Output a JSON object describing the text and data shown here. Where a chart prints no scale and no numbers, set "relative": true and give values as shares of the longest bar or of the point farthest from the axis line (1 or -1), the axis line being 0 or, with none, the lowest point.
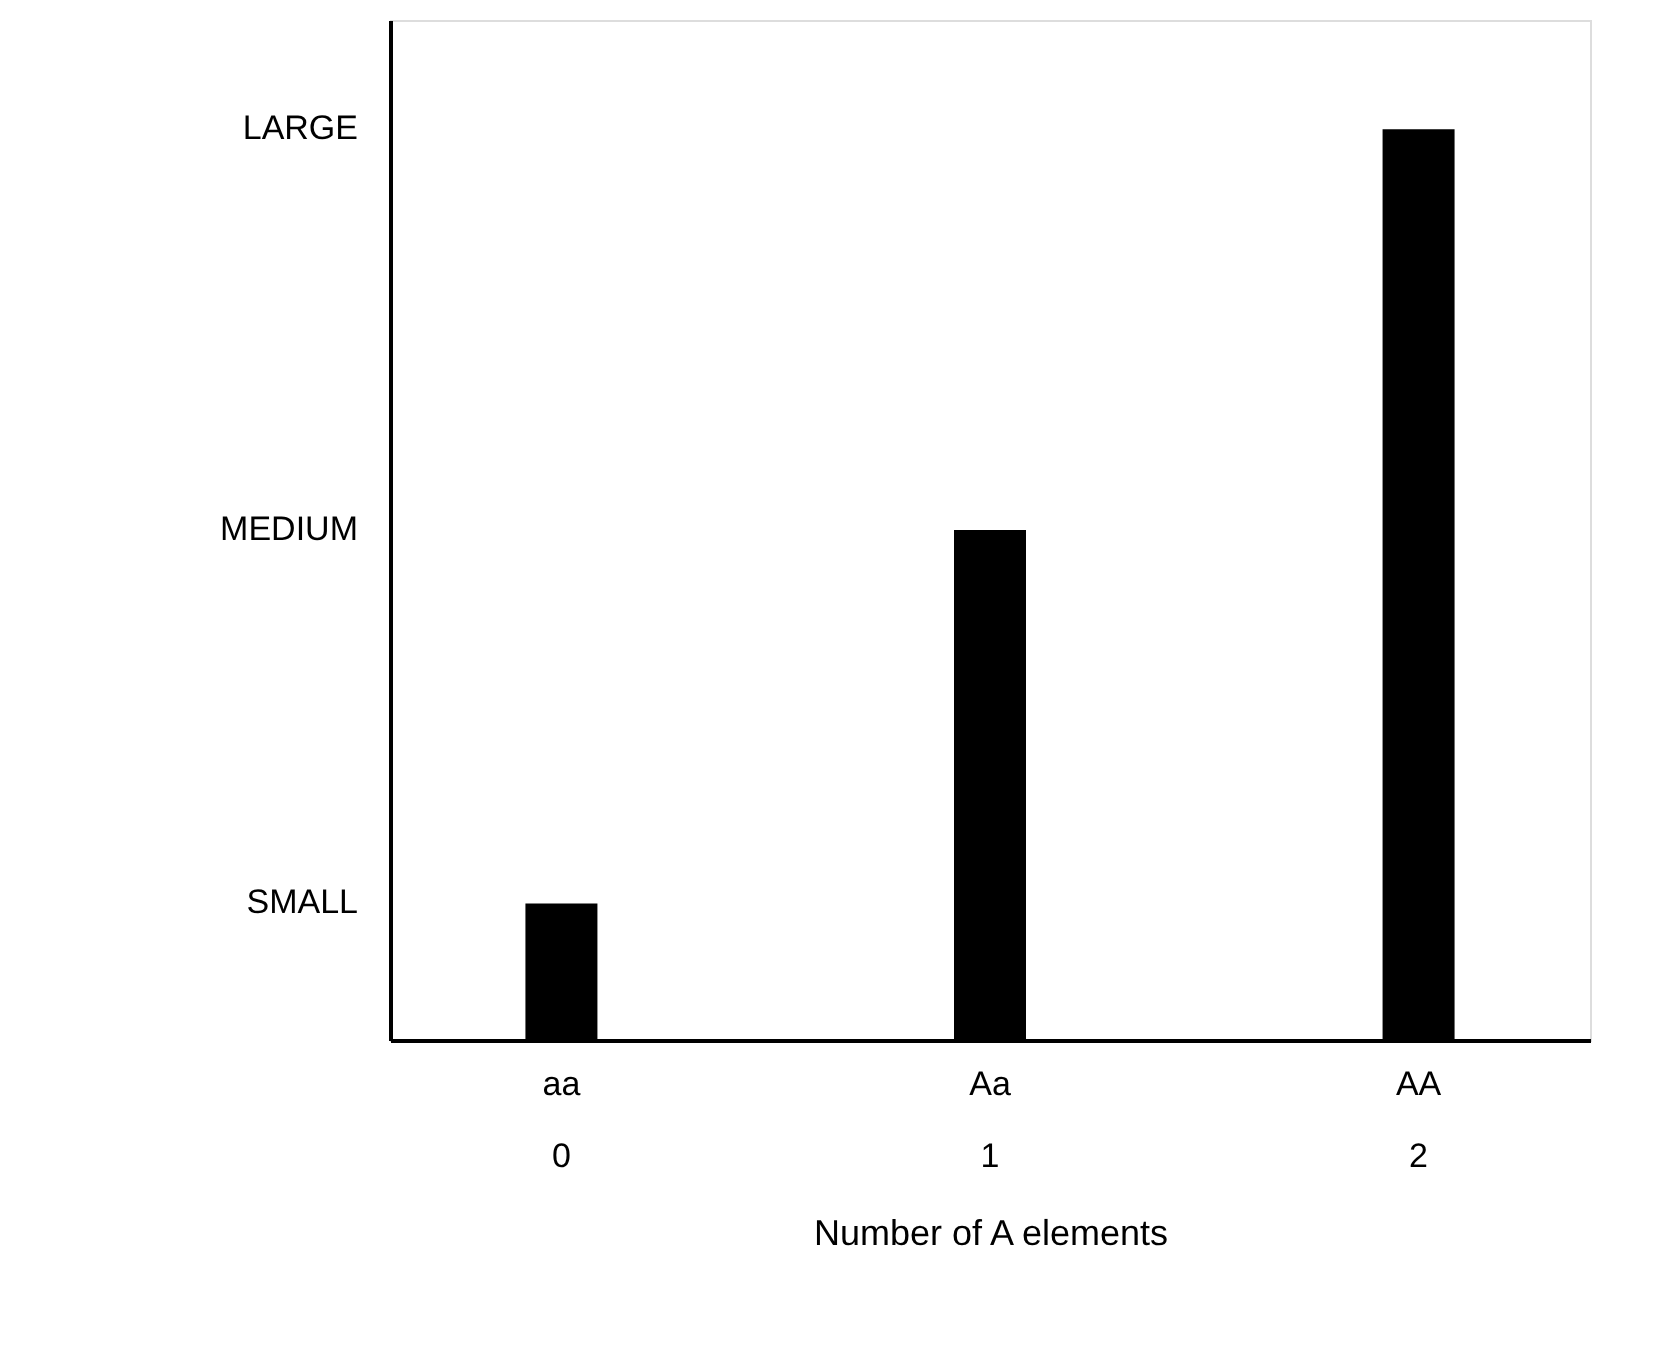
{
  "chart_data": {
    "type": "bar",
    "xlabel": "Number of A elements",
    "categories": [
      "aa\n0",
      "Aa\n1",
      "AA\n2"
    ],
    "values": [
      0.15,
      0.56,
      1.0
    ],
    "color": "#000000",
    "relative": true,
    "annotations": [
      "SMALL",
      "MEDIUM",
      "LARGE"
    ],
    "grid": false
  }
}
